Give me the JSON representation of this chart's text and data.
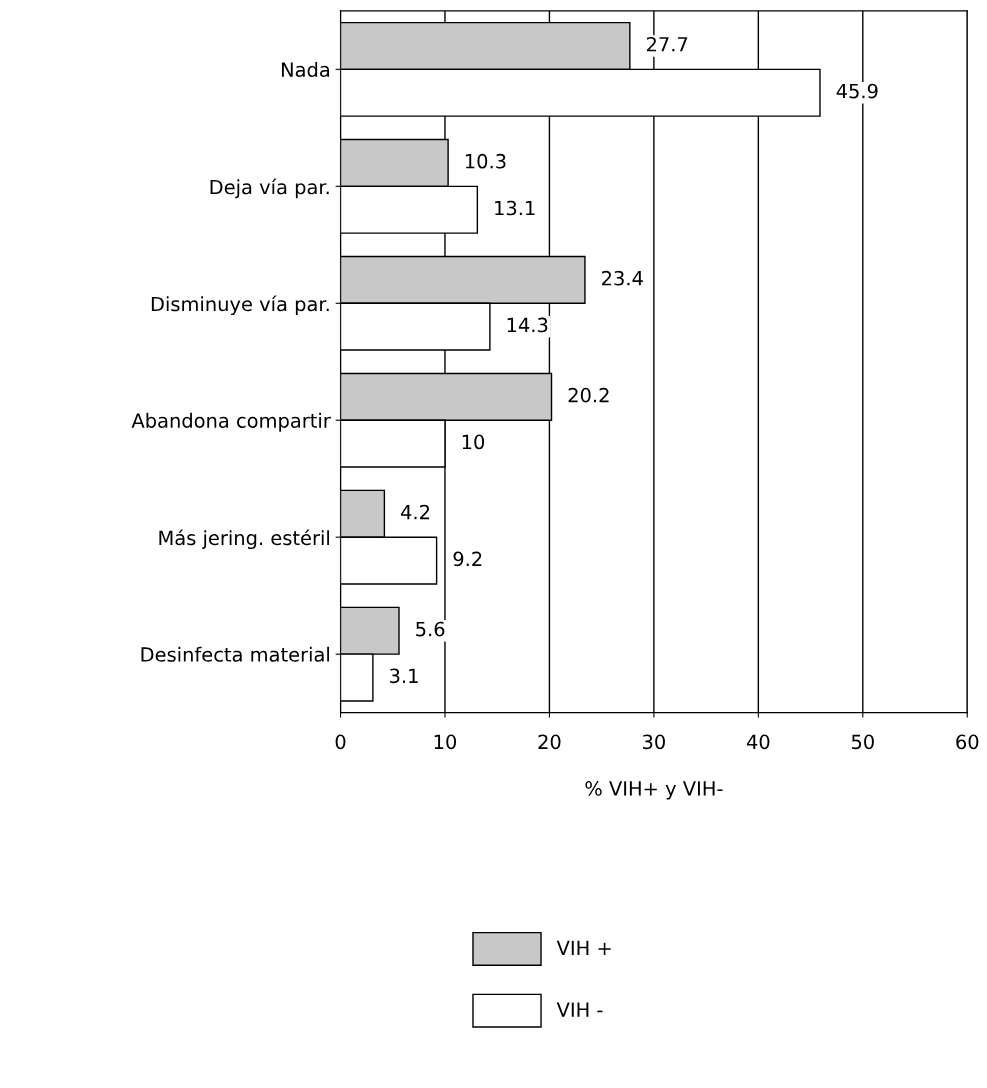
{
  "chart_data": {
    "type": "bar",
    "orientation": "horizontal",
    "xlabel": "% VIH+ y VIH-",
    "categories": [
      "Nada",
      "Deja vía par.",
      "Disminuye vía par.",
      "Abandona compartir",
      "Más jering. estéril",
      "Desinfecta material"
    ],
    "series": [
      {
        "name": "VIH +",
        "color": "#c8c8c8",
        "values": [
          27.7,
          10.3,
          23.4,
          20.2,
          4.2,
          5.6
        ]
      },
      {
        "name": "VIH -",
        "color": "#ffffff",
        "values": [
          45.9,
          13.1,
          14.3,
          10,
          9.2,
          3.1
        ]
      }
    ],
    "xlim": [
      0,
      60
    ],
    "xticks": [
      0,
      10,
      20,
      30,
      40,
      50,
      60
    ],
    "grid": "x",
    "legend": "bottom",
    "data_labels": true
  }
}
